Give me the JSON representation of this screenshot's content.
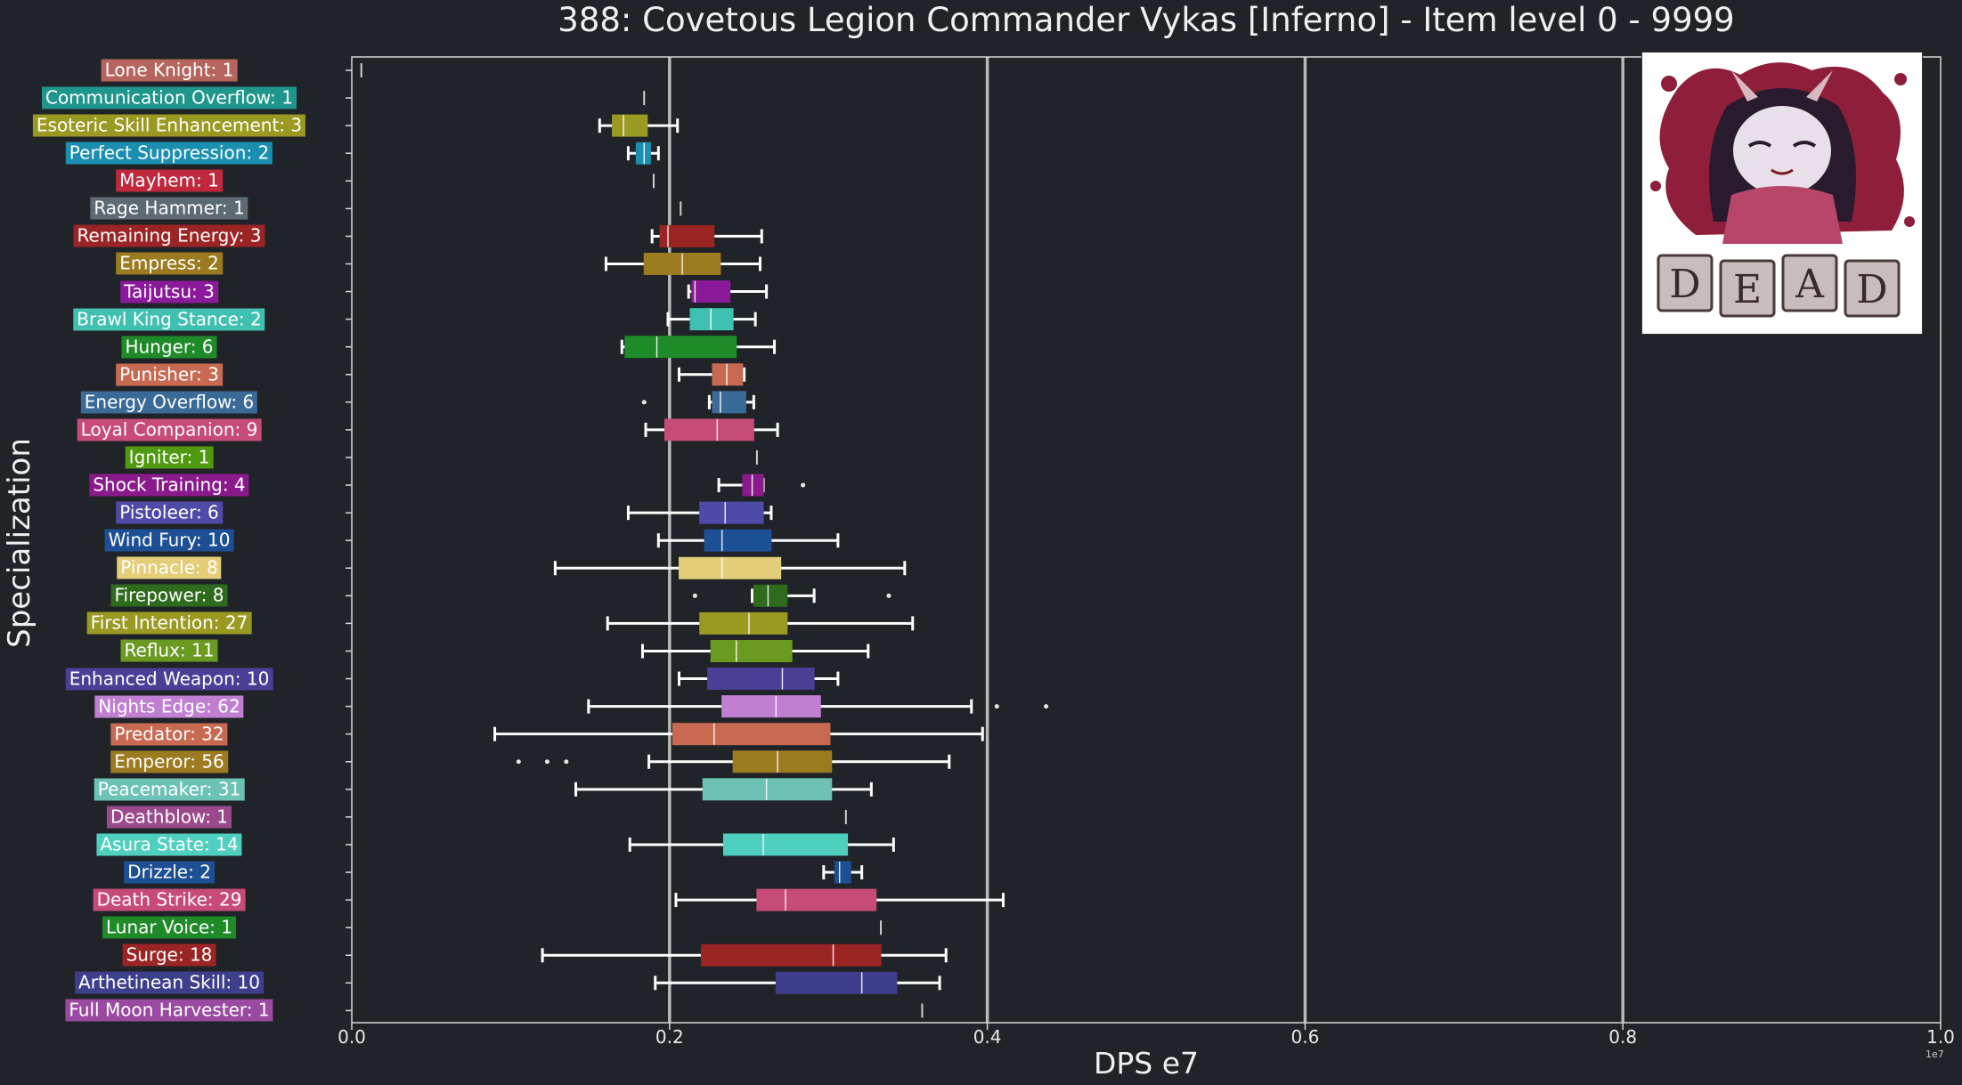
{
  "chart_data": {
    "type": "boxplot",
    "orientation": "horizontal",
    "title": "388: Covetous Legion Commander Vykas [Inferno] - Item level 0 - 9999",
    "xlabel": "DPS e7",
    "ylabel": "Specialization",
    "x_offset_label": "1e7",
    "xlim": [
      0,
      1.0
    ],
    "x_ticks": [
      "0.0",
      "0.2",
      "0.4",
      "0.6",
      "0.8",
      "1.0"
    ],
    "grid": "vertical gridlines at major ticks",
    "image_caption": "DEAD",
    "series": [
      {
        "label": "Lone Knight: 1",
        "color": "#b5655e",
        "whislo": 0.006,
        "q1": 0.006,
        "med": 0.006,
        "q3": 0.006,
        "whishi": 0.006,
        "fliers": []
      },
      {
        "label": "Communication Overflow: 1",
        "color": "#1f968b",
        "whislo": 0.184,
        "q1": 0.184,
        "med": 0.184,
        "q3": 0.184,
        "whishi": 0.184,
        "fliers": []
      },
      {
        "label": "Esoteric Skill Enhancement: 3",
        "color": "#9a9a23",
        "whislo": 0.156,
        "q1": 0.164,
        "med": 0.171,
        "q3": 0.186,
        "whishi": 0.205,
        "fliers": []
      },
      {
        "label": "Perfect Suppression: 2",
        "color": "#1a8fb0",
        "whislo": 0.174,
        "q1": 0.179,
        "med": 0.184,
        "q3": 0.188,
        "whishi": 0.193,
        "fliers": []
      },
      {
        "label": "Mayhem: 1",
        "color": "#c0283e",
        "whislo": 0.19,
        "q1": 0.19,
        "med": 0.19,
        "q3": 0.19,
        "whishi": 0.19,
        "fliers": []
      },
      {
        "label": "Rage Hammer: 1",
        "color": "#5c6b73",
        "whislo": 0.207,
        "q1": 0.207,
        "med": 0.207,
        "q3": 0.207,
        "whishi": 0.207,
        "fliers": []
      },
      {
        "label": "Remaining Energy: 3",
        "color": "#9b2424",
        "whislo": 0.189,
        "q1": 0.194,
        "med": 0.199,
        "q3": 0.228,
        "whishi": 0.258,
        "fliers": []
      },
      {
        "label": "Empress: 2",
        "color": "#9c7a20",
        "whislo": 0.16,
        "q1": 0.184,
        "med": 0.208,
        "q3": 0.232,
        "whishi": 0.257,
        "fliers": []
      },
      {
        "label": "Taijutsu: 3",
        "color": "#8a1a99",
        "whislo": 0.212,
        "q1": 0.214,
        "med": 0.216,
        "q3": 0.238,
        "whishi": 0.261,
        "fliers": []
      },
      {
        "label": "Brawl King Stance: 2",
        "color": "#40c0b0",
        "whislo": 0.199,
        "q1": 0.213,
        "med": 0.226,
        "q3": 0.24,
        "whishi": 0.254,
        "fliers": []
      },
      {
        "label": "Hunger: 6",
        "color": "#1e8a28",
        "whislo": 0.17,
        "q1": 0.172,
        "med": 0.192,
        "q3": 0.242,
        "whishi": 0.266,
        "fliers": []
      },
      {
        "label": "Punisher: 3",
        "color": "#c86a52",
        "whislo": 0.206,
        "q1": 0.227,
        "med": 0.236,
        "q3": 0.246,
        "whishi": 0.247,
        "fliers": []
      },
      {
        "label": "Energy Overflow: 6",
        "color": "#3a6a98",
        "whislo": 0.225,
        "q1": 0.227,
        "med": 0.232,
        "q3": 0.248,
        "whishi": 0.253,
        "fliers": [
          0.184
        ]
      },
      {
        "label": "Loyal Companion: 9",
        "color": "#c74b78",
        "whislo": 0.185,
        "q1": 0.197,
        "med": 0.23,
        "q3": 0.253,
        "whishi": 0.268,
        "fliers": []
      },
      {
        "label": "Igniter: 1",
        "color": "#4f9a10",
        "whislo": 0.255,
        "q1": 0.255,
        "med": 0.255,
        "q3": 0.255,
        "whishi": 0.255,
        "fliers": []
      },
      {
        "label": "Shock Training: 4",
        "color": "#8a1a8c",
        "whislo": 0.231,
        "q1": 0.246,
        "med": 0.252,
        "q3": 0.259,
        "whishi": 0.259,
        "fliers": [
          0.284
        ]
      },
      {
        "label": "Pistoleer: 6",
        "color": "#4e4aa8",
        "whislo": 0.174,
        "q1": 0.219,
        "med": 0.235,
        "q3": 0.259,
        "whishi": 0.264,
        "fliers": []
      },
      {
        "label": "Wind Fury: 10",
        "color": "#1d4f94",
        "whislo": 0.193,
        "q1": 0.222,
        "med": 0.233,
        "q3": 0.264,
        "whishi": 0.306,
        "fliers": []
      },
      {
        "label": "Pinnacle: 8",
        "color": "#e3cd78",
        "whislo": 0.128,
        "q1": 0.206,
        "med": 0.233,
        "q3": 0.27,
        "whishi": 0.348,
        "fliers": []
      },
      {
        "label": "Firepower: 8",
        "color": "#2f6b1c",
        "whislo": 0.252,
        "q1": 0.253,
        "med": 0.262,
        "q3": 0.274,
        "whishi": 0.291,
        "fliers": [
          0.216,
          0.338
        ]
      },
      {
        "label": "First Intention: 27",
        "color": "#9a9a23",
        "whislo": 0.161,
        "q1": 0.219,
        "med": 0.25,
        "q3": 0.274,
        "whishi": 0.353,
        "fliers": []
      },
      {
        "label": "Reflux: 11",
        "color": "#6a9a22",
        "whislo": 0.183,
        "q1": 0.226,
        "med": 0.242,
        "q3": 0.277,
        "whishi": 0.325,
        "fliers": []
      },
      {
        "label": "Enhanced Weapon: 10",
        "color": "#4a3f96",
        "whislo": 0.206,
        "q1": 0.224,
        "med": 0.271,
        "q3": 0.291,
        "whishi": 0.306,
        "fliers": []
      },
      {
        "label": "Nights Edge: 62",
        "color": "#c17fd1",
        "whislo": 0.149,
        "q1": 0.233,
        "med": 0.267,
        "q3": 0.295,
        "whishi": 0.39,
        "fliers": [
          0.406,
          0.437
        ]
      },
      {
        "label": "Predator: 32",
        "color": "#c86a52",
        "whislo": 0.09,
        "q1": 0.202,
        "med": 0.228,
        "q3": 0.301,
        "whishi": 0.397,
        "fliers": []
      },
      {
        "label": "Emperor: 56",
        "color": "#9c7a20",
        "whislo": 0.187,
        "q1": 0.24,
        "med": 0.268,
        "q3": 0.302,
        "whishi": 0.376,
        "fliers": [
          0.105,
          0.123,
          0.135
        ]
      },
      {
        "label": "Peacemaker: 31",
        "color": "#6cc2b4",
        "whislo": 0.141,
        "q1": 0.221,
        "med": 0.261,
        "q3": 0.302,
        "whishi": 0.327,
        "fliers": []
      },
      {
        "label": "Deathblow: 1",
        "color": "#9a4a8c",
        "whislo": 0.311,
        "q1": 0.311,
        "med": 0.311,
        "q3": 0.311,
        "whishi": 0.311,
        "fliers": []
      },
      {
        "label": "Asura State: 14",
        "color": "#4ecfc0",
        "whislo": 0.175,
        "q1": 0.234,
        "med": 0.259,
        "q3": 0.312,
        "whishi": 0.341,
        "fliers": []
      },
      {
        "label": "Drizzle: 2",
        "color": "#1d4f94",
        "whislo": 0.297,
        "q1": 0.304,
        "med": 0.307,
        "q3": 0.314,
        "whishi": 0.321,
        "fliers": []
      },
      {
        "label": "Death Strike: 29",
        "color": "#c74b78",
        "whislo": 0.204,
        "q1": 0.255,
        "med": 0.273,
        "q3": 0.33,
        "whishi": 0.41,
        "fliers": []
      },
      {
        "label": "Lunar Voice: 1",
        "color": "#1e8a28",
        "whislo": 0.333,
        "q1": 0.333,
        "med": 0.333,
        "q3": 0.333,
        "whishi": 0.333,
        "fliers": []
      },
      {
        "label": "Surge: 18",
        "color": "#9b2424",
        "whislo": 0.12,
        "q1": 0.22,
        "med": 0.303,
        "q3": 0.333,
        "whishi": 0.374,
        "fliers": []
      },
      {
        "label": "Arthetinean Skill: 10",
        "color": "#3e3f8c",
        "whislo": 0.191,
        "q1": 0.267,
        "med": 0.321,
        "q3": 0.343,
        "whishi": 0.37,
        "fliers": []
      },
      {
        "label": "Full Moon Harvester: 1",
        "color": "#9a4aa0",
        "whislo": 0.359,
        "q1": 0.359,
        "med": 0.359,
        "q3": 0.359,
        "whishi": 0.359,
        "fliers": []
      }
    ]
  }
}
